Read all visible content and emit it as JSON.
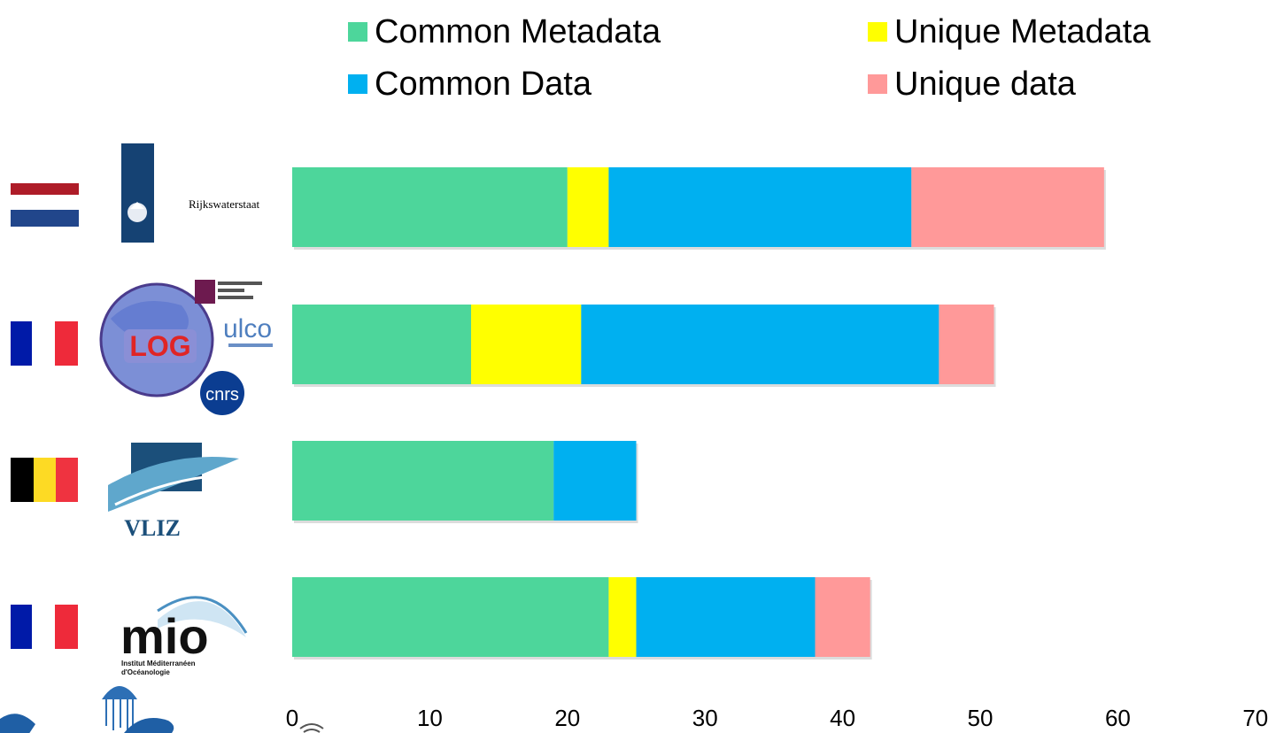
{
  "chart_data": {
    "type": "bar",
    "orientation": "horizontal",
    "stacked": true,
    "categories": [
      "Rijkswaterstaat",
      "LOG",
      "VLIZ",
      "MIO"
    ],
    "series": [
      {
        "name": "Common Metadata",
        "color": "#4dd69b",
        "values": [
          20,
          13,
          19,
          23
        ]
      },
      {
        "name": "Unique Metadata",
        "color": "#ffff00",
        "values": [
          3,
          8,
          0,
          2
        ]
      },
      {
        "name": "Common Data",
        "color": "#00b0f0",
        "values": [
          22,
          26,
          6,
          13
        ]
      },
      {
        "name": "Unique data",
        "color": "#ff9999",
        "values": [
          14,
          4,
          0,
          4
        ]
      }
    ],
    "xlim": [
      0,
      70
    ],
    "xticks": [
      "0",
      "10",
      "20",
      "30",
      "40",
      "50",
      "60",
      "70"
    ],
    "legend_position": "top",
    "grid": false
  },
  "legend": {
    "common_metadata": "Common Metadata",
    "unique_metadata": "Unique Metadata",
    "common_data": "Common Data",
    "unique_data": "Unique data"
  },
  "rows": [
    {
      "flag": "netherlands-flag",
      "logo": "rijkswaterstaat-logo",
      "logo_text": "Rijkswaterstaat"
    },
    {
      "flag": "france-flag",
      "logo": "log-ulco-cnrs-logos",
      "logo_text": "LOG",
      "secondary_logo_text": "ulco",
      "tertiary_logo_text": "cnrs"
    },
    {
      "flag": "belgium-flag",
      "logo": "vliz-logo",
      "logo_text": "VLIZ"
    },
    {
      "flag": "france-flag",
      "logo": "mio-logo",
      "logo_text": "mio",
      "logo_subtext_1": "Institut Méditerranéen",
      "logo_subtext_2": "d'Océanologie"
    }
  ]
}
